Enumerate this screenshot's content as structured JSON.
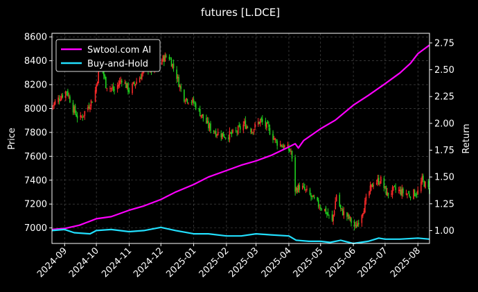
{
  "chart_data": {
    "type": "line",
    "title": "futures [L.DCE]",
    "ylabel_left": "Price",
    "ylabel_right": "Return",
    "x_range": [
      "2024-08-20",
      "2025-08-12"
    ],
    "x_ticks": [
      "2024-09",
      "2024-10",
      "2024-11",
      "2024-12",
      "2025-01",
      "2025-02",
      "2025-03",
      "2025-04",
      "2025-05",
      "2025-06",
      "2025-07",
      "2025-08"
    ],
    "ylim_left": [
      6870,
      8630
    ],
    "yticks_left": [
      7000,
      7200,
      7400,
      7600,
      7800,
      8000,
      8200,
      8400,
      8600
    ],
    "ylim_right": [
      0.88,
      2.84
    ],
    "yticks_right": [
      1.0,
      1.25,
      1.5,
      1.75,
      2.0,
      2.25,
      2.5,
      2.75
    ],
    "grid": true,
    "legend_position": "top-left",
    "colors": {
      "bull": "#ff2a2a",
      "bear": "#1fd01f",
      "ai": "#ff00ff",
      "bh": "#22e0ff",
      "grid": "#555555",
      "axis": "#ffffff"
    },
    "series": [
      {
        "name": "Swtool.com AI",
        "axis": "right",
        "points": [
          [
            "2024-08-20",
            1.01
          ],
          [
            "2024-09-01",
            1.02
          ],
          [
            "2024-09-15",
            1.05
          ],
          [
            "2024-10-01",
            1.11
          ],
          [
            "2024-10-15",
            1.13
          ],
          [
            "2024-11-01",
            1.19
          ],
          [
            "2024-11-15",
            1.23
          ],
          [
            "2024-12-01",
            1.29
          ],
          [
            "2024-12-15",
            1.36
          ],
          [
            "2025-01-01",
            1.43
          ],
          [
            "2025-01-15",
            1.5
          ],
          [
            "2025-02-01",
            1.56
          ],
          [
            "2025-02-15",
            1.61
          ],
          [
            "2025-03-01",
            1.65
          ],
          [
            "2025-03-15",
            1.7
          ],
          [
            "2025-04-01",
            1.78
          ],
          [
            "2025-04-07",
            1.81
          ],
          [
            "2025-04-10",
            1.77
          ],
          [
            "2025-04-15",
            1.84
          ],
          [
            "2025-05-01",
            1.95
          ],
          [
            "2025-05-15",
            2.03
          ],
          [
            "2025-06-01",
            2.17
          ],
          [
            "2025-06-15",
            2.26
          ],
          [
            "2025-07-01",
            2.37
          ],
          [
            "2025-07-15",
            2.47
          ],
          [
            "2025-07-25",
            2.56
          ],
          [
            "2025-08-01",
            2.65
          ],
          [
            "2025-08-12",
            2.73
          ]
        ]
      },
      {
        "name": "Buy-and-Hold",
        "axis": "right",
        "points": [
          [
            "2024-08-20",
            1.0
          ],
          [
            "2024-09-01",
            1.01
          ],
          [
            "2024-09-10",
            0.98
          ],
          [
            "2024-09-25",
            0.97
          ],
          [
            "2024-10-01",
            1.0
          ],
          [
            "2024-10-15",
            1.01
          ],
          [
            "2024-11-01",
            0.99
          ],
          [
            "2024-11-15",
            1.0
          ],
          [
            "2024-12-01",
            1.03
          ],
          [
            "2024-12-15",
            1.0
          ],
          [
            "2025-01-01",
            0.97
          ],
          [
            "2025-01-15",
            0.97
          ],
          [
            "2025-02-01",
            0.95
          ],
          [
            "2025-02-15",
            0.95
          ],
          [
            "2025-03-01",
            0.97
          ],
          [
            "2025-03-15",
            0.96
          ],
          [
            "2025-04-01",
            0.95
          ],
          [
            "2025-04-08",
            0.91
          ],
          [
            "2025-04-20",
            0.9
          ],
          [
            "2025-05-01",
            0.9
          ],
          [
            "2025-05-10",
            0.89
          ],
          [
            "2025-05-20",
            0.91
          ],
          [
            "2025-06-01",
            0.88
          ],
          [
            "2025-06-15",
            0.9
          ],
          [
            "2025-06-25",
            0.93
          ],
          [
            "2025-07-01",
            0.92
          ],
          [
            "2025-07-15",
            0.92
          ],
          [
            "2025-08-01",
            0.93
          ],
          [
            "2025-08-12",
            0.92
          ]
        ]
      }
    ],
    "price_path": [
      [
        "2024-08-20",
        8020
      ],
      [
        "2024-08-28",
        8100
      ],
      [
        "2024-09-03",
        8150
      ],
      [
        "2024-09-09",
        8000
      ],
      [
        "2024-09-15",
        7900
      ],
      [
        "2024-09-22",
        8000
      ],
      [
        "2024-09-29",
        8100
      ],
      [
        "2024-10-05",
        8400
      ],
      [
        "2024-10-10",
        8200
      ],
      [
        "2024-10-18",
        8150
      ],
      [
        "2024-10-25",
        8250
      ],
      [
        "2024-11-01",
        8150
      ],
      [
        "2024-11-10",
        8250
      ],
      [
        "2024-11-18",
        8350
      ],
      [
        "2024-11-25",
        8300
      ],
      [
        "2024-12-01",
        8400
      ],
      [
        "2024-12-08",
        8450
      ],
      [
        "2024-12-15",
        8300
      ],
      [
        "2024-12-22",
        8100
      ],
      [
        "2025-01-01",
        8050
      ],
      [
        "2025-01-08",
        7950
      ],
      [
        "2025-01-15",
        7850
      ],
      [
        "2025-01-22",
        7800
      ],
      [
        "2025-02-01",
        7770
      ],
      [
        "2025-02-10",
        7800
      ],
      [
        "2025-02-18",
        7870
      ],
      [
        "2025-02-25",
        7820
      ],
      [
        "2025-03-05",
        7900
      ],
      [
        "2025-03-12",
        7840
      ],
      [
        "2025-03-20",
        7720
      ],
      [
        "2025-03-28",
        7680
      ],
      [
        "2025-04-03",
        7640
      ],
      [
        "2025-04-07",
        7320
      ],
      [
        "2025-04-12",
        7350
      ],
      [
        "2025-04-20",
        7280
      ],
      [
        "2025-04-28",
        7200
      ],
      [
        "2025-05-05",
        7150
      ],
      [
        "2025-05-12",
        7050
      ],
      [
        "2025-05-16",
        7280
      ],
      [
        "2025-05-20",
        7150
      ],
      [
        "2025-05-28",
        7080
      ],
      [
        "2025-06-03",
        7000
      ],
      [
        "2025-06-10",
        7150
      ],
      [
        "2025-06-15",
        7280
      ],
      [
        "2025-06-20",
        7380
      ],
      [
        "2025-06-27",
        7400
      ],
      [
        "2025-07-03",
        7280
      ],
      [
        "2025-07-10",
        7320
      ],
      [
        "2025-07-17",
        7300
      ],
      [
        "2025-07-24",
        7280
      ],
      [
        "2025-08-01",
        7300
      ],
      [
        "2025-08-05",
        7400
      ],
      [
        "2025-08-12",
        7310
      ]
    ]
  }
}
